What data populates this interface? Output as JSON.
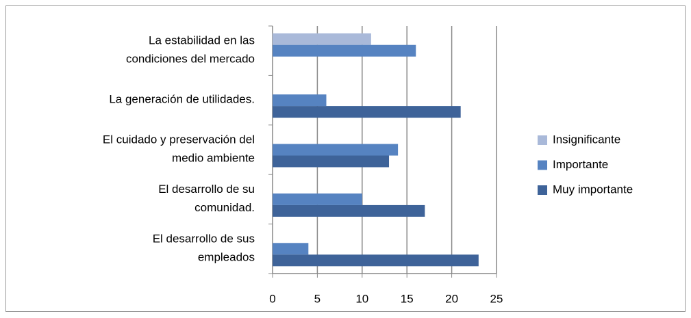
{
  "chart_data": {
    "type": "hbar",
    "categories": [
      [
        "La estabilidad  en las",
        "condiciones del mercado"
      ],
      [
        "La generación de utilidades."
      ],
      [
        "El cuidado y preservación del",
        "medio ambiente"
      ],
      [
        "El desarrollo de su",
        "comunidad."
      ],
      [
        "El desarrollo de sus",
        "empleados"
      ]
    ],
    "series": [
      {
        "name": "Insignificante",
        "color": "#a9b9d9",
        "values": [
          11,
          0,
          0,
          0,
          0
        ]
      },
      {
        "name": "Importante",
        "color": "#5683c1",
        "values": [
          16,
          6,
          14,
          10,
          4
        ]
      },
      {
        "name": "Muy importante",
        "color": "#3e6399",
        "values": [
          0,
          21,
          13,
          17,
          23
        ]
      }
    ],
    "xlim": [
      0,
      25
    ],
    "xticks": [
      0,
      5,
      10,
      15,
      20,
      25
    ],
    "grid": true,
    "legend": "right"
  }
}
